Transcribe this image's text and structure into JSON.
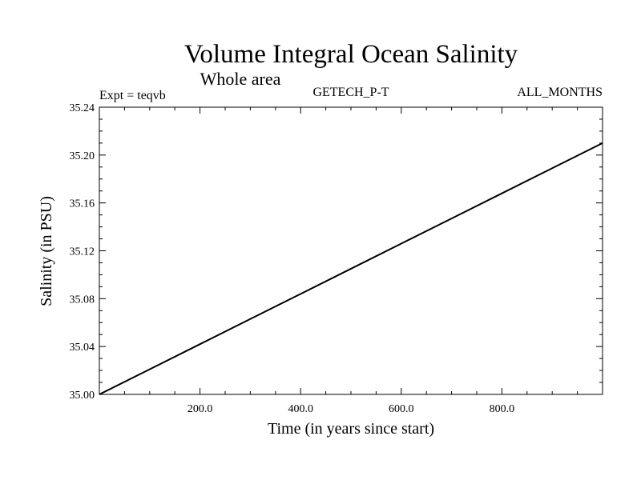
{
  "chart_data": {
    "type": "line",
    "title": "Volume Integral Ocean Salinity",
    "subtitle": "Whole area",
    "left_label": "Expt = teqvb",
    "center_label": "GETECH_P-T",
    "right_label": "ALL_MONTHS",
    "xlabel": "Time (in years since start)",
    "ylabel": "Salinity (in PSU)",
    "xlim": [
      0,
      1000
    ],
    "ylim": [
      35.0,
      35.24
    ],
    "x_ticks": [
      200,
      400,
      600,
      800
    ],
    "x_tick_labels": [
      "200.0",
      "400.0",
      "600.0",
      "800.0"
    ],
    "y_ticks": [
      35.0,
      35.04,
      35.08,
      35.12,
      35.16,
      35.2,
      35.24
    ],
    "y_tick_labels": [
      "35.00",
      "35.04",
      "35.08",
      "35.12",
      "35.16",
      "35.20",
      "35.24"
    ],
    "grid": false,
    "line_color": "#000000",
    "series": [
      {
        "x": [
          0,
          100,
          200,
          300,
          400,
          500,
          600,
          700,
          800,
          900,
          1000
        ],
        "values": [
          35.0,
          35.021,
          35.042,
          35.063,
          35.084,
          35.105,
          35.126,
          35.147,
          35.168,
          35.189,
          35.21
        ]
      }
    ]
  }
}
